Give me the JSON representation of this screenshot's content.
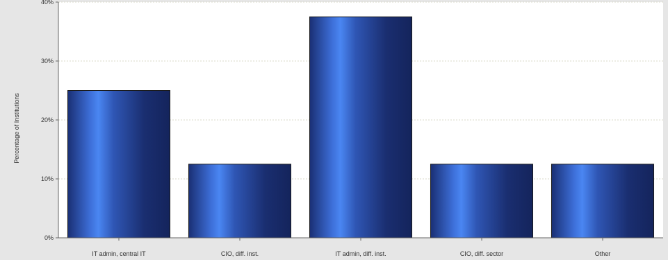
{
  "chart_data": {
    "type": "bar",
    "categories": [
      "IT admin, central IT",
      "CIO, diff. inst.",
      "IT admin, diff. inst.",
      "CIO, diff. sector",
      "Other"
    ],
    "values": [
      25,
      12.5,
      37.5,
      12.5,
      12.5
    ],
    "ylabel": "Percentage of Institutions",
    "xlabel": "",
    "ylim": [
      0,
      40
    ],
    "yticks": [
      0,
      10,
      20,
      30,
      40
    ],
    "ytick_labels": [
      "0%",
      "10%",
      "20%",
      "30%",
      "40%"
    ],
    "grid": true,
    "legend": "none",
    "colors": {
      "bar_light": "#4a86f2",
      "bar_dark": "#14245c",
      "plot_background": "#ffffff",
      "page_background": "#e6e6e6",
      "gridline": "#d8d8c8"
    }
  }
}
